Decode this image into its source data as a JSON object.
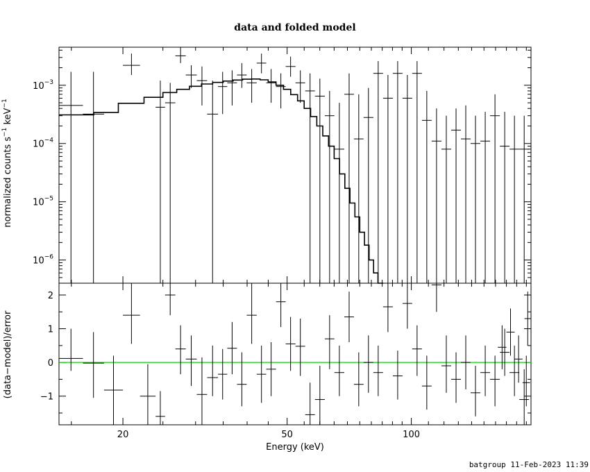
{
  "chart_data": {
    "title": "data and folded model",
    "xlabel": "Energy (keV)",
    "xscale": "log",
    "xlim": [
      14,
      195
    ],
    "x_ticks": [
      "20",
      "50",
      "100"
    ],
    "top_panel": {
      "type": "line",
      "ylabel_text": "normalized counts s",
      "ylabel_unit": "keV",
      "ylabel_exp": "−1",
      "yscale": "log",
      "ylim": [
        4e-07,
        0.0045
      ],
      "y_ticks": [
        {
          "base": "10",
          "exp": "−3",
          "value": 0.001
        },
        {
          "base": "10",
          "exp": "−4",
          "value": 0.0001
        },
        {
          "base": "10",
          "exp": "−5",
          "value": 1e-05
        },
        {
          "base": "10",
          "exp": "−6",
          "value": 1e-06
        }
      ],
      "data_color": "#000000",
      "model_color": "#000000",
      "data": [
        {
          "xlo": 14,
          "xhi": 16,
          "y": 0.00045,
          "ylo": 4e-07,
          "yhi": 0.0017
        },
        {
          "xlo": 16,
          "xhi": 18,
          "y": 0.00032,
          "ylo": 4e-07,
          "yhi": 0.0017
        },
        {
          "xlo": 20,
          "xhi": 22,
          "y": 0.0022,
          "ylo": 0.0015,
          "yhi": 0.0035
        },
        {
          "xlo": 24,
          "xhi": 25.3,
          "y": 0.00042,
          "ylo": 4e-07,
          "yhi": 0.0012
        },
        {
          "xlo": 25.3,
          "xhi": 26.8,
          "y": 0.0005,
          "ylo": 4e-07,
          "yhi": 0.0011
        },
        {
          "xlo": 26.8,
          "xhi": 28.4,
          "y": 0.0032,
          "ylo": 0.0024,
          "yhi": 0.0045
        },
        {
          "xlo": 28.4,
          "xhi": 30.2,
          "y": 0.0015,
          "ylo": 0.0009,
          "yhi": 0.0022
        },
        {
          "xlo": 30.2,
          "xhi": 32,
          "y": 0.0012,
          "ylo": 0.00045,
          "yhi": 0.0021
        },
        {
          "xlo": 32,
          "xhi": 34,
          "y": 0.00032,
          "ylo": 4e-07,
          "yhi": 0.0012
        },
        {
          "xlo": 34,
          "xhi": 35.8,
          "y": 0.00095,
          "ylo": 0.00032,
          "yhi": 0.0017
        },
        {
          "xlo": 35.8,
          "xhi": 37.8,
          "y": 0.0011,
          "ylo": 0.00045,
          "yhi": 0.0018
        },
        {
          "xlo": 37.8,
          "xhi": 39.9,
          "y": 0.0015,
          "ylo": 0.0009,
          "yhi": 0.0024
        },
        {
          "xlo": 39.9,
          "xhi": 42.2,
          "y": 0.0011,
          "ylo": 0.0005,
          "yhi": 0.0019
        },
        {
          "xlo": 42.2,
          "xhi": 44.5,
          "y": 0.0024,
          "ylo": 0.0016,
          "yhi": 0.0035
        },
        {
          "xlo": 44.5,
          "xhi": 47,
          "y": 0.0011,
          "ylo": 0.0005,
          "yhi": 0.0019
        },
        {
          "xlo": 47,
          "xhi": 49.6,
          "y": 0.00095,
          "ylo": 0.0004,
          "yhi": 0.0016
        },
        {
          "xlo": 49.6,
          "xhi": 52.4,
          "y": 0.0021,
          "ylo": 0.0014,
          "yhi": 0.0031
        },
        {
          "xlo": 52.4,
          "xhi": 55.3,
          "y": 0.0011,
          "ylo": 0.0005,
          "yhi": 0.0018
        },
        {
          "xlo": 55.3,
          "xhi": 58.4,
          "y": 0.0008,
          "ylo": 4e-07,
          "yhi": 0.0016
        },
        {
          "xlo": 58.4,
          "xhi": 61.7,
          "y": 0.00065,
          "ylo": 4e-07,
          "yhi": 0.0013
        },
        {
          "xlo": 61.7,
          "xhi": 65.1,
          "y": 0.0003,
          "ylo": 4e-07,
          "yhi": 0.0008
        },
        {
          "xlo": 65.1,
          "xhi": 68.8,
          "y": 8e-05,
          "ylo": 4e-07,
          "yhi": 0.0005
        },
        {
          "xlo": 68.8,
          "xhi": 72.6,
          "y": 0.0007,
          "ylo": 4e-07,
          "yhi": 0.0016
        },
        {
          "xlo": 72.6,
          "xhi": 76.6,
          "y": 0.00012,
          "ylo": 4e-07,
          "yhi": 0.0007
        },
        {
          "xlo": 76.6,
          "xhi": 80.9,
          "y": 0.00028,
          "ylo": 4e-07,
          "yhi": 0.0009
        },
        {
          "xlo": 80.9,
          "xhi": 85.4,
          "y": 0.0016,
          "ylo": 4e-07,
          "yhi": 0.0026
        },
        {
          "xlo": 85.4,
          "xhi": 90.2,
          "y": 0.0006,
          "ylo": 4e-07,
          "yhi": 0.0015
        },
        {
          "xlo": 90.2,
          "xhi": 95.2,
          "y": 0.0016,
          "ylo": 4e-07,
          "yhi": 0.0026
        },
        {
          "xlo": 95.2,
          "xhi": 100.5,
          "y": 0.0006,
          "ylo": 4e-07,
          "yhi": 0.0015
        },
        {
          "xlo": 100.5,
          "xhi": 106.1,
          "y": 0.0016,
          "ylo": 4e-07,
          "yhi": 0.0026
        },
        {
          "xlo": 106.1,
          "xhi": 112,
          "y": 0.00025,
          "ylo": 4e-07,
          "yhi": 0.0008
        },
        {
          "xlo": 112,
          "xhi": 118.3,
          "y": 0.00011,
          "ylo": 4e-07,
          "yhi": 0.0004
        },
        {
          "xlo": 118.3,
          "xhi": 124.9,
          "y": 8e-05,
          "ylo": 4e-07,
          "yhi": 0.0003
        },
        {
          "xlo": 124.9,
          "xhi": 131.9,
          "y": 0.00017,
          "ylo": 4e-07,
          "yhi": 0.0004
        },
        {
          "xlo": 131.9,
          "xhi": 139.2,
          "y": 0.00012,
          "ylo": 4e-07,
          "yhi": 0.00045
        },
        {
          "xlo": 139.2,
          "xhi": 147,
          "y": 0.0001,
          "ylo": 4e-07,
          "yhi": 0.0003
        },
        {
          "xlo": 147,
          "xhi": 155.2,
          "y": 0.00011,
          "ylo": 4e-07,
          "yhi": 0.00035
        },
        {
          "xlo": 155.2,
          "xhi": 163.9,
          "y": 0.0003,
          "ylo": 4e-07,
          "yhi": 0.0007
        },
        {
          "xlo": 163.9,
          "xhi": 173,
          "y": 9e-05,
          "ylo": 4e-07,
          "yhi": 0.00035
        },
        {
          "xlo": 173,
          "xhi": 182.7,
          "y": 8e-05,
          "ylo": 4e-07,
          "yhi": 0.0003
        },
        {
          "xlo": 182.7,
          "xhi": 192.9,
          "y": 8e-05,
          "ylo": 4e-07,
          "yhi": 0.0003
        }
      ],
      "model": [
        {
          "x": 14,
          "y": 0.00031
        },
        {
          "x": 17,
          "y": 0.00034
        },
        {
          "x": 19.5,
          "y": 0.00049
        },
        {
          "x": 22.5,
          "y": 0.00062
        },
        {
          "x": 25,
          "y": 0.00075
        },
        {
          "x": 27,
          "y": 0.00085
        },
        {
          "x": 29,
          "y": 0.00096
        },
        {
          "x": 31,
          "y": 0.00105
        },
        {
          "x": 33,
          "y": 0.00112
        },
        {
          "x": 35,
          "y": 0.00118
        },
        {
          "x": 37,
          "y": 0.00123
        },
        {
          "x": 39,
          "y": 0.00127
        },
        {
          "x": 41,
          "y": 0.00128
        },
        {
          "x": 43,
          "y": 0.00124
        },
        {
          "x": 45,
          "y": 0.00114
        },
        {
          "x": 47,
          "y": 0.001
        },
        {
          "x": 49,
          "y": 0.00085
        },
        {
          "x": 51,
          "y": 0.00069
        },
        {
          "x": 53,
          "y": 0.00054
        },
        {
          "x": 55,
          "y": 0.0004
        },
        {
          "x": 57,
          "y": 0.00029
        },
        {
          "x": 59,
          "y": 0.0002
        },
        {
          "x": 61,
          "y": 0.000135
        },
        {
          "x": 63,
          "y": 9e-05
        },
        {
          "x": 65,
          "y": 5.5e-05
        },
        {
          "x": 67,
          "y": 3e-05
        },
        {
          "x": 69,
          "y": 1.7e-05
        },
        {
          "x": 71,
          "y": 9.5e-06
        },
        {
          "x": 73,
          "y": 5.5e-06
        },
        {
          "x": 75,
          "y": 3e-06
        },
        {
          "x": 77,
          "y": 1.8e-06
        },
        {
          "x": 79,
          "y": 1e-06
        },
        {
          "x": 81,
          "y": 6e-07
        },
        {
          "x": 83,
          "y": 4e-07
        }
      ]
    },
    "bottom_panel": {
      "type": "line",
      "ylabel": "(data−model)/error",
      "ylim": [
        -1.85,
        2.35
      ],
      "y_ticks": [
        "2",
        "1",
        "0",
        "−1"
      ],
      "zero_line_color": "#00d000",
      "data": [
        {
          "xlo": 14,
          "xhi": 16,
          "y": 0.12,
          "ylo": -0.25,
          "yhi": 1.0
        },
        {
          "xlo": 16,
          "xhi": 18,
          "y": -0.02,
          "ylo": -1.05,
          "yhi": 0.9
        },
        {
          "xlo": 18,
          "xhi": 20,
          "y": -0.82,
          "ylo": -1.9,
          "yhi": 0.2
        },
        {
          "xlo": 20,
          "xhi": 22,
          "y": 1.4,
          "ylo": 0.55,
          "yhi": 2.35
        },
        {
          "xlo": 22,
          "xhi": 24,
          "y": -1.0,
          "ylo": -1.9,
          "yhi": -0.05
        },
        {
          "xlo": 24,
          "xhi": 25.3,
          "y": -1.6,
          "ylo": -1.9,
          "yhi": -0.85
        },
        {
          "xlo": 25.3,
          "xhi": 26.8,
          "y": 2.0,
          "ylo": 1.4,
          "yhi": 2.35
        },
        {
          "xlo": 26.8,
          "xhi": 28.4,
          "y": 0.4,
          "ylo": -0.35,
          "yhi": 1.1
        },
        {
          "xlo": 28.4,
          "xhi": 30.2,
          "y": 0.1,
          "ylo": -0.7,
          "yhi": 0.8
        },
        {
          "xlo": 30.2,
          "xhi": 32,
          "y": -0.95,
          "ylo": -1.9,
          "yhi": 0.15
        },
        {
          "xlo": 32,
          "xhi": 34,
          "y": -0.45,
          "ylo": -1.0,
          "yhi": 0.5
        },
        {
          "xlo": 34,
          "xhi": 35.8,
          "y": -0.35,
          "ylo": -1.1,
          "yhi": 0.4
        },
        {
          "xlo": 35.8,
          "xhi": 37.8,
          "y": 0.42,
          "ylo": -0.35,
          "yhi": 1.2
        },
        {
          "xlo": 37.8,
          "xhi": 39.9,
          "y": -0.65,
          "ylo": -1.3,
          "yhi": 0.3
        },
        {
          "xlo": 39.9,
          "xhi": 42.2,
          "y": 1.4,
          "ylo": 0.55,
          "yhi": 2.35
        },
        {
          "xlo": 42.2,
          "xhi": 44.5,
          "y": -0.35,
          "ylo": -1.2,
          "yhi": 0.5
        },
        {
          "xlo": 44.5,
          "xhi": 47,
          "y": -0.2,
          "ylo": -1.0,
          "yhi": 0.6
        },
        {
          "xlo": 47,
          "xhi": 49.6,
          "y": 1.8,
          "ylo": 1.05,
          "yhi": 2.35
        },
        {
          "xlo": 49.6,
          "xhi": 52.4,
          "y": 0.55,
          "ylo": -0.25,
          "yhi": 1.35
        },
        {
          "xlo": 52.4,
          "xhi": 55.3,
          "y": 0.48,
          "ylo": -0.4,
          "yhi": 1.3
        },
        {
          "xlo": 55.3,
          "xhi": 58.4,
          "y": -1.55,
          "ylo": -1.9,
          "yhi": -0.6
        },
        {
          "xlo": 58.4,
          "xhi": 61.7,
          "y": -1.1,
          "ylo": -1.9,
          "yhi": -0.1
        },
        {
          "xlo": 61.7,
          "xhi": 65.1,
          "y": 0.7,
          "ylo": -0.2,
          "yhi": 1.4
        },
        {
          "xlo": 65.1,
          "xhi": 68.8,
          "y": -0.3,
          "ylo": -1.0,
          "yhi": 0.5
        },
        {
          "xlo": 68.8,
          "xhi": 72.6,
          "y": 1.35,
          "ylo": 0.6,
          "yhi": 2.1
        },
        {
          "xlo": 72.6,
          "xhi": 76.6,
          "y": -0.65,
          "ylo": -1.3,
          "yhi": 0.3
        },
        {
          "xlo": 76.6,
          "xhi": 80.9,
          "y": 0.0,
          "ylo": -0.9,
          "yhi": 0.8
        },
        {
          "xlo": 80.9,
          "xhi": 85.4,
          "y": -0.3,
          "ylo": -1.0,
          "yhi": 0.5
        },
        {
          "xlo": 85.4,
          "xhi": 90.2,
          "y": 1.65,
          "ylo": 0.9,
          "yhi": 2.35
        },
        {
          "xlo": 90.2,
          "xhi": 95.2,
          "y": -0.4,
          "ylo": -1.1,
          "yhi": 0.35
        },
        {
          "xlo": 95.2,
          "xhi": 100.5,
          "y": 1.75,
          "ylo": 1.0,
          "yhi": 2.35
        },
        {
          "xlo": 100.5,
          "xhi": 106.1,
          "y": 0.4,
          "ylo": -0.4,
          "yhi": 1.1
        },
        {
          "xlo": 106.1,
          "xhi": 112,
          "y": -0.7,
          "ylo": -1.4,
          "yhi": 0.2
        },
        {
          "xlo": 112,
          "xhi": 118.3,
          "y": 2.3,
          "ylo": 1.5,
          "yhi": 2.35
        },
        {
          "xlo": 118.3,
          "xhi": 124.9,
          "y": -0.1,
          "ylo": -0.9,
          "yhi": 0.8
        },
        {
          "xlo": 124.9,
          "xhi": 131.9,
          "y": -0.5,
          "ylo": -1.2,
          "yhi": 0.3
        },
        {
          "xlo": 131.9,
          "xhi": 139.2,
          "y": 0.0,
          "ylo": -0.8,
          "yhi": 0.8
        },
        {
          "xlo": 139.2,
          "xhi": 147,
          "y": -0.9,
          "ylo": -1.6,
          "yhi": -0.1
        },
        {
          "xlo": 147,
          "xhi": 155.2,
          "y": -0.3,
          "ylo": -1.0,
          "yhi": 0.5
        },
        {
          "xlo": 155.2,
          "xhi": 163.9,
          "y": -0.5,
          "ylo": -1.3,
          "yhi": 0.2
        },
        {
          "xlo": 163.9,
          "xhi": 173,
          "y": 0.3,
          "ylo": -0.4,
          "yhi": 1.0
        },
        {
          "xlo": 173,
          "xhi": 182.7,
          "y": -0.3,
          "ylo": -1.0,
          "yhi": 0.5
        },
        {
          "xlo": 182.7,
          "xhi": 192.9,
          "y": -1.1,
          "ylo": -1.9,
          "yhi": -0.2
        },
        {
          "xlo": 162,
          "xhi": 170,
          "y": 0.45,
          "ylo": -0.2,
          "yhi": 1.1
        },
        {
          "xlo": 170,
          "xhi": 178,
          "y": 0.9,
          "ylo": 0.2,
          "yhi": 1.6
        },
        {
          "xlo": 178,
          "xhi": 186,
          "y": 0.1,
          "ylo": -0.6,
          "yhi": 0.8
        },
        {
          "xlo": 186,
          "xhi": 194,
          "y": -0.6,
          "ylo": -1.3,
          "yhi": 0.2
        },
        {
          "xlo": 188,
          "xhi": 195,
          "y": 1.3,
          "ylo": 0.5,
          "yhi": 2.1
        }
      ]
    }
  },
  "footer": "batgroup 11-Feb-2023 11:39"
}
